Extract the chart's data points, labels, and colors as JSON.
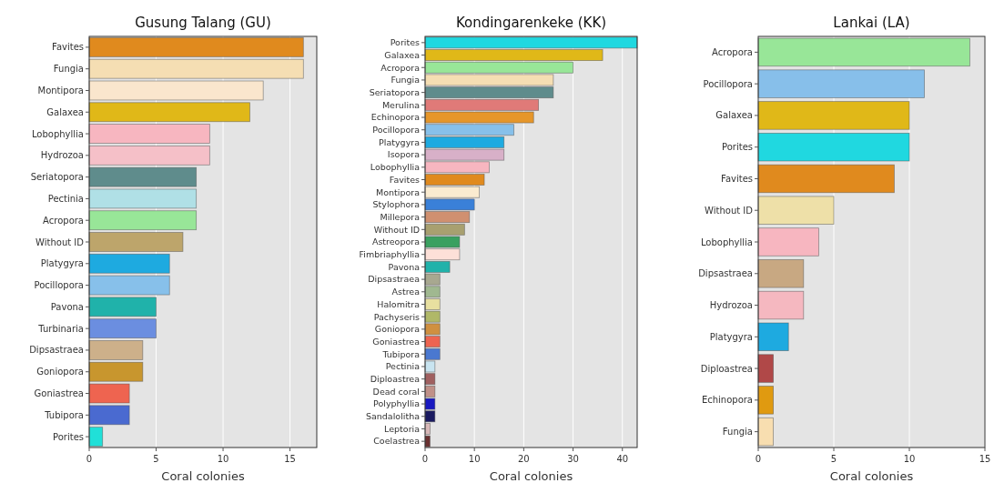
{
  "chart_data": [
    {
      "type": "bar",
      "orientation": "horizontal",
      "title": "Gusung Talang (GU)",
      "xlabel": "Coral colonies",
      "grid": "x",
      "xlim": [
        0,
        17
      ],
      "xticks": [
        0,
        5,
        10,
        15
      ],
      "categories": [
        "Favites",
        "Fungia",
        "Montipora",
        "Galaxea",
        "Lobophyllia",
        "Hydrozoa",
        "Seriatopora",
        "Pectinia",
        "Acropora",
        "Without ID",
        "Platygyra",
        "Pocillopora",
        "Pavona",
        "Turbinaria",
        "Dipsastraea",
        "Goniopora",
        "Goniastrea",
        "Tubipora",
        "Porites"
      ],
      "values": [
        16,
        16,
        13,
        12,
        9,
        9,
        8,
        8,
        8,
        7,
        6,
        6,
        5,
        5,
        4,
        4,
        3,
        3,
        1
      ],
      "colors": [
        "#e08a1e",
        "#f5deb3",
        "#fae6cd",
        "#e0b818",
        "#f7b6c0",
        "#f5c0c8",
        "#5f8c8c",
        "#b0e0e6",
        "#98e698",
        "#bda56b",
        "#1eaae0",
        "#87c0ea",
        "#20b2aa",
        "#6b8ee0",
        "#cdb08a",
        "#c8962e",
        "#ee6450",
        "#4a6ad0",
        "#20e0d8"
      ]
    },
    {
      "type": "bar",
      "orientation": "horizontal",
      "title": "Kondingarenkeke (KK)",
      "xlabel": "Coral colonies",
      "grid": "x",
      "xlim": [
        0,
        43
      ],
      "xticks": [
        0,
        10,
        20,
        30,
        40
      ],
      "categories": [
        "Porites",
        "Galaxea",
        "Acropora",
        "Fungia",
        "Seriatopora",
        "Merulina",
        "Echinopora",
        "Pocillopora",
        "Platygyra",
        "Isopora",
        "Lobophyllia",
        "Favites",
        "Montipora",
        "Stylophora",
        "Millepora",
        "Without ID",
        "Astreopora",
        "Fimbriaphyllia",
        "Pavona",
        "Dipsastraea",
        "Astrea",
        "Halomitra",
        "Pachyseris",
        "Goniopora",
        "Goniastrea",
        "Tubipora",
        "Pectinia",
        "Diploastrea",
        "Dead coral",
        "Polyphyllia",
        "Sandalolitha",
        "Leptoria",
        "Coelastrea"
      ],
      "values": [
        43,
        36,
        30,
        26,
        26,
        23,
        22,
        18,
        16,
        16,
        13,
        12,
        11,
        10,
        9,
        8,
        7,
        7,
        5,
        3,
        3,
        3,
        3,
        3,
        3,
        3,
        2,
        2,
        2,
        2,
        2,
        1,
        1
      ],
      "colors": [
        "#20d8e0",
        "#e0b818",
        "#98e698",
        "#f5deb3",
        "#5f8c8c",
        "#e07a78",
        "#e6962a",
        "#87c0ea",
        "#1eaae0",
        "#d8b0c8",
        "#f7b6c0",
        "#e08a1e",
        "#faebd0",
        "#3a80d8",
        "#d09070",
        "#a8a070",
        "#3aa060",
        "#fde0d8",
        "#20b2aa",
        "#a8a890",
        "#a0b890",
        "#e8e0a0",
        "#b0b868",
        "#d09040",
        "#ee6450",
        "#4a78d0",
        "#c8e4f0",
        "#a06060",
        "#c09088",
        "#1818c0",
        "#1a1a60",
        "#d8b8b8",
        "#6a3030"
      ]
    },
    {
      "type": "bar",
      "orientation": "horizontal",
      "title": "Lankai (LA)",
      "xlabel": "Coral colonies",
      "grid": "x",
      "xlim": [
        0,
        15
      ],
      "xticks": [
        0,
        5,
        10,
        15
      ],
      "categories": [
        "Acropora",
        "Pocillopora",
        "Galaxea",
        "Porites",
        "Favites",
        "Without ID",
        "Lobophyllia",
        "Dipsastraea",
        "Hydrozoa",
        "Platygyra",
        "Diploastrea",
        "Echinopora",
        "Fungia"
      ],
      "values": [
        14,
        11,
        10,
        10,
        9,
        5,
        4,
        3,
        3,
        2,
        1,
        1,
        1
      ],
      "colors": [
        "#98e698",
        "#87bfea",
        "#e0b818",
        "#20d8e0",
        "#e08a1e",
        "#eee0a8",
        "#f7b6c0",
        "#c8a882",
        "#f5b8c0",
        "#1eaae0",
        "#b04848",
        "#e09a10",
        "#f8deb0"
      ]
    }
  ]
}
